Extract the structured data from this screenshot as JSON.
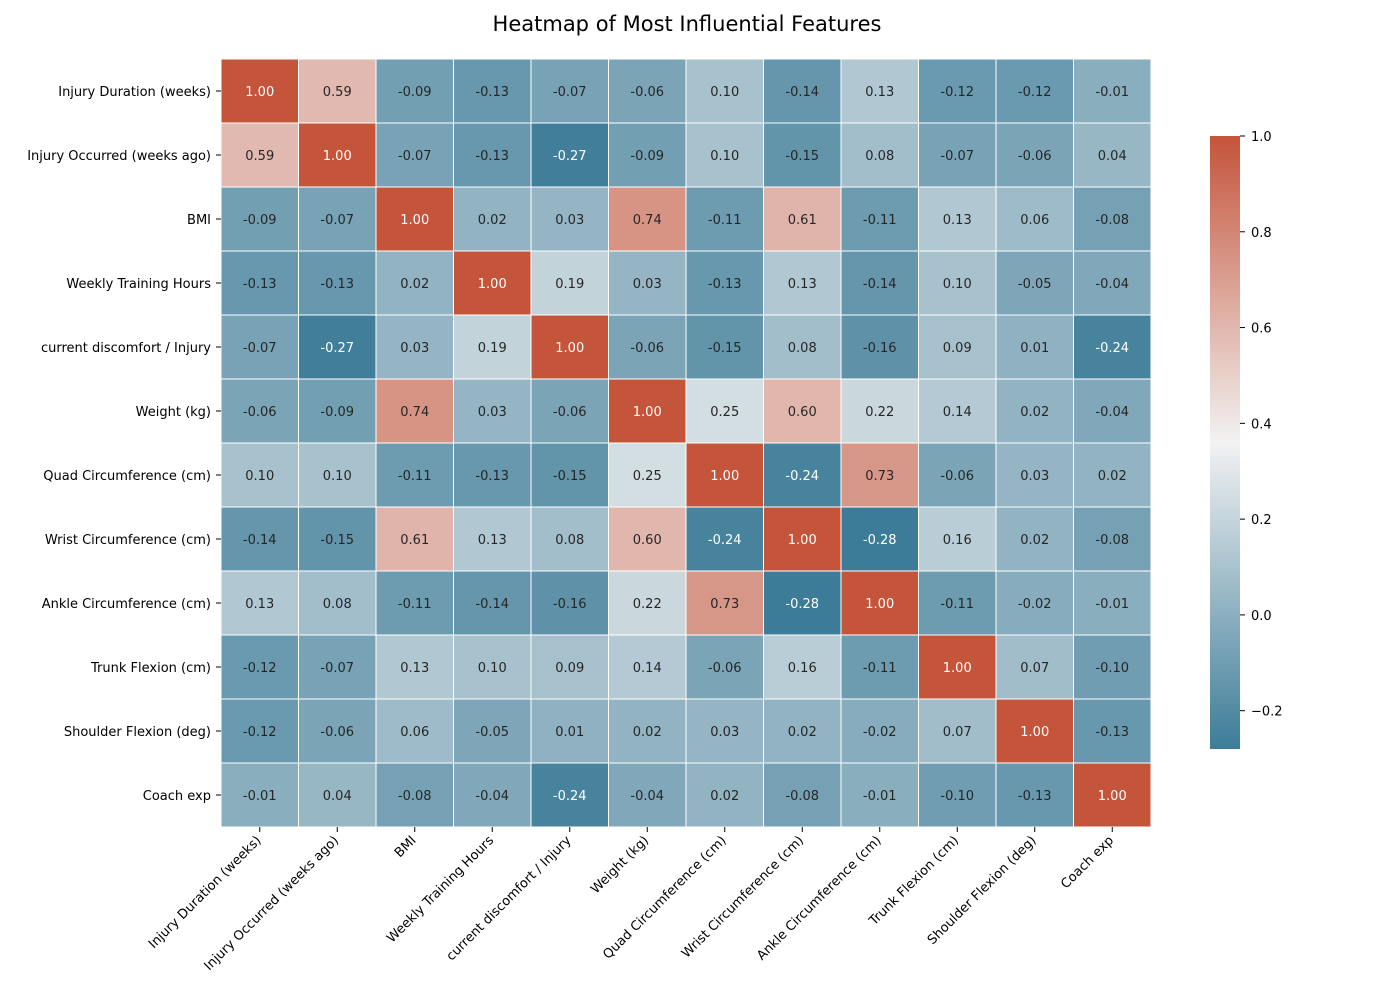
{
  "chart_data": {
    "type": "heatmap",
    "title": "Heatmap of Most Influential Features",
    "labels": [
      "Injury Duration (weeks)",
      "Injury Occurred (weeks ago)",
      "BMI",
      "Weekly Training Hours",
      "current discomfort / Injury",
      "Weight (kg)",
      "Quad Circumference (cm)",
      "Wrist Circumference (cm)",
      "Ankle Circumference (cm)",
      "Trunk Flexion (cm)",
      "Shoulder Flexion (deg)",
      "Coach exp"
    ],
    "matrix": [
      [
        1.0,
        0.59,
        -0.09,
        -0.13,
        -0.07,
        -0.06,
        0.1,
        -0.14,
        0.13,
        -0.12,
        -0.12,
        -0.01
      ],
      [
        0.59,
        1.0,
        -0.07,
        -0.13,
        -0.27,
        -0.09,
        0.1,
        -0.15,
        0.08,
        -0.07,
        -0.06,
        0.04
      ],
      [
        -0.09,
        -0.07,
        1.0,
        0.02,
        0.03,
        0.74,
        -0.11,
        0.61,
        -0.11,
        0.13,
        0.06,
        -0.08
      ],
      [
        -0.13,
        -0.13,
        0.02,
        1.0,
        0.19,
        0.03,
        -0.13,
        0.13,
        -0.14,
        0.1,
        -0.05,
        -0.04
      ],
      [
        -0.07,
        -0.27,
        0.03,
        0.19,
        1.0,
        -0.06,
        -0.15,
        0.08,
        -0.16,
        0.09,
        0.01,
        -0.24
      ],
      [
        -0.06,
        -0.09,
        0.74,
        0.03,
        -0.06,
        1.0,
        0.25,
        0.6,
        0.22,
        0.14,
        0.02,
        -0.04
      ],
      [
        0.1,
        0.1,
        -0.11,
        -0.13,
        -0.15,
        0.25,
        1.0,
        -0.24,
        0.73,
        -0.06,
        0.03,
        0.02
      ],
      [
        -0.14,
        -0.15,
        0.61,
        0.13,
        0.08,
        0.6,
        -0.24,
        1.0,
        -0.28,
        0.16,
        0.02,
        -0.08
      ],
      [
        0.13,
        0.08,
        -0.11,
        -0.14,
        -0.16,
        0.22,
        0.73,
        -0.28,
        1.0,
        -0.11,
        -0.02,
        -0.01
      ],
      [
        -0.12,
        -0.07,
        0.13,
        0.1,
        0.09,
        0.14,
        -0.06,
        0.16,
        -0.11,
        1.0,
        0.07,
        -0.1
      ],
      [
        -0.12,
        -0.06,
        0.06,
        -0.05,
        0.01,
        0.02,
        0.03,
        0.02,
        -0.02,
        0.07,
        1.0,
        -0.13
      ],
      [
        -0.01,
        0.04,
        -0.08,
        -0.04,
        -0.24,
        -0.04,
        0.02,
        -0.08,
        -0.01,
        -0.1,
        -0.13,
        1.0
      ]
    ],
    "value_format": "2 decimals",
    "color_range": [
      -0.28,
      1.0
    ],
    "colorbar_ticks": [
      -0.2,
      0.0,
      0.2,
      0.4,
      0.6,
      0.8,
      1.0
    ],
    "colorbar_tick_labels": [
      "−0.2",
      "0.0",
      "0.2",
      "0.4",
      "0.6",
      "0.8",
      "1.0"
    ],
    "colors": {
      "negative_end": "#3d7c98",
      "center": "#f2f2f2",
      "positive_end": "#c4543a",
      "grid_line": "#ffffff"
    },
    "colorbar_position": "right"
  }
}
